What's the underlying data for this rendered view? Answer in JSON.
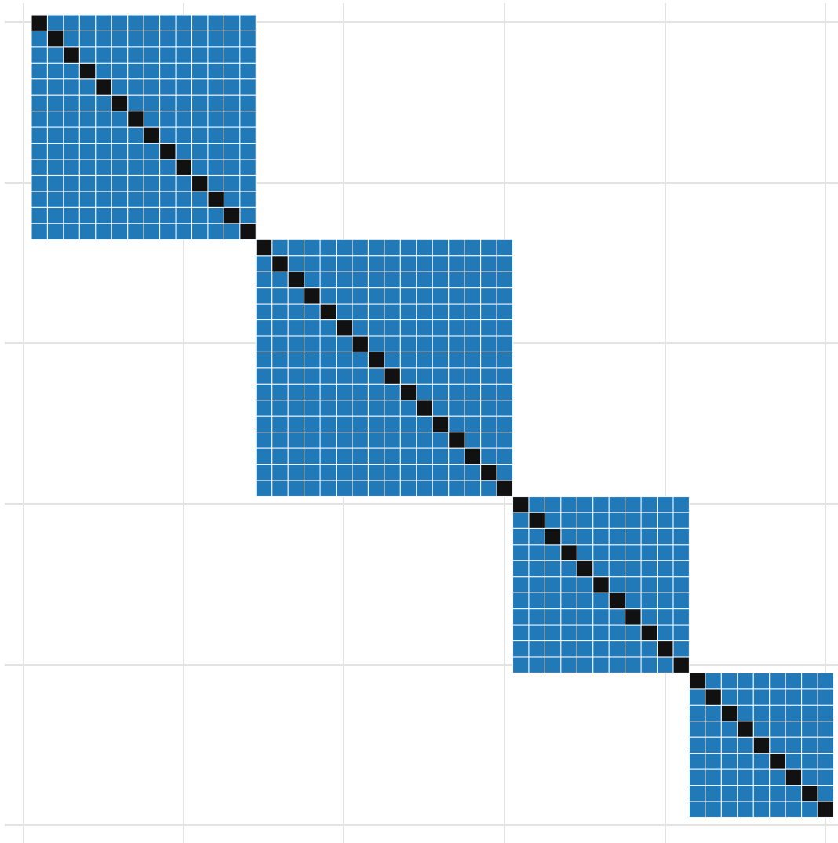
{
  "colors": {
    "background": "#ffffff",
    "grid": "#e3e3e3",
    "block_fill": "#2279b7",
    "cell_divider": "#f2f6fa",
    "diagonal": "#111111"
  },
  "chart_data": {
    "type": "heatmap",
    "title": "",
    "xlabel": "",
    "ylabel": "",
    "matrix_size": 50,
    "grid": true,
    "tick_labels": [],
    "blocks": [
      {
        "start": 0,
        "size": 14,
        "value": 1
      },
      {
        "start": 14,
        "size": 16,
        "value": 1
      },
      {
        "start": 30,
        "size": 11,
        "value": 1
      },
      {
        "start": 41,
        "size": 9,
        "value": 1
      }
    ],
    "diagonal_value": 2,
    "off_block_value": 0,
    "legend": "none"
  }
}
